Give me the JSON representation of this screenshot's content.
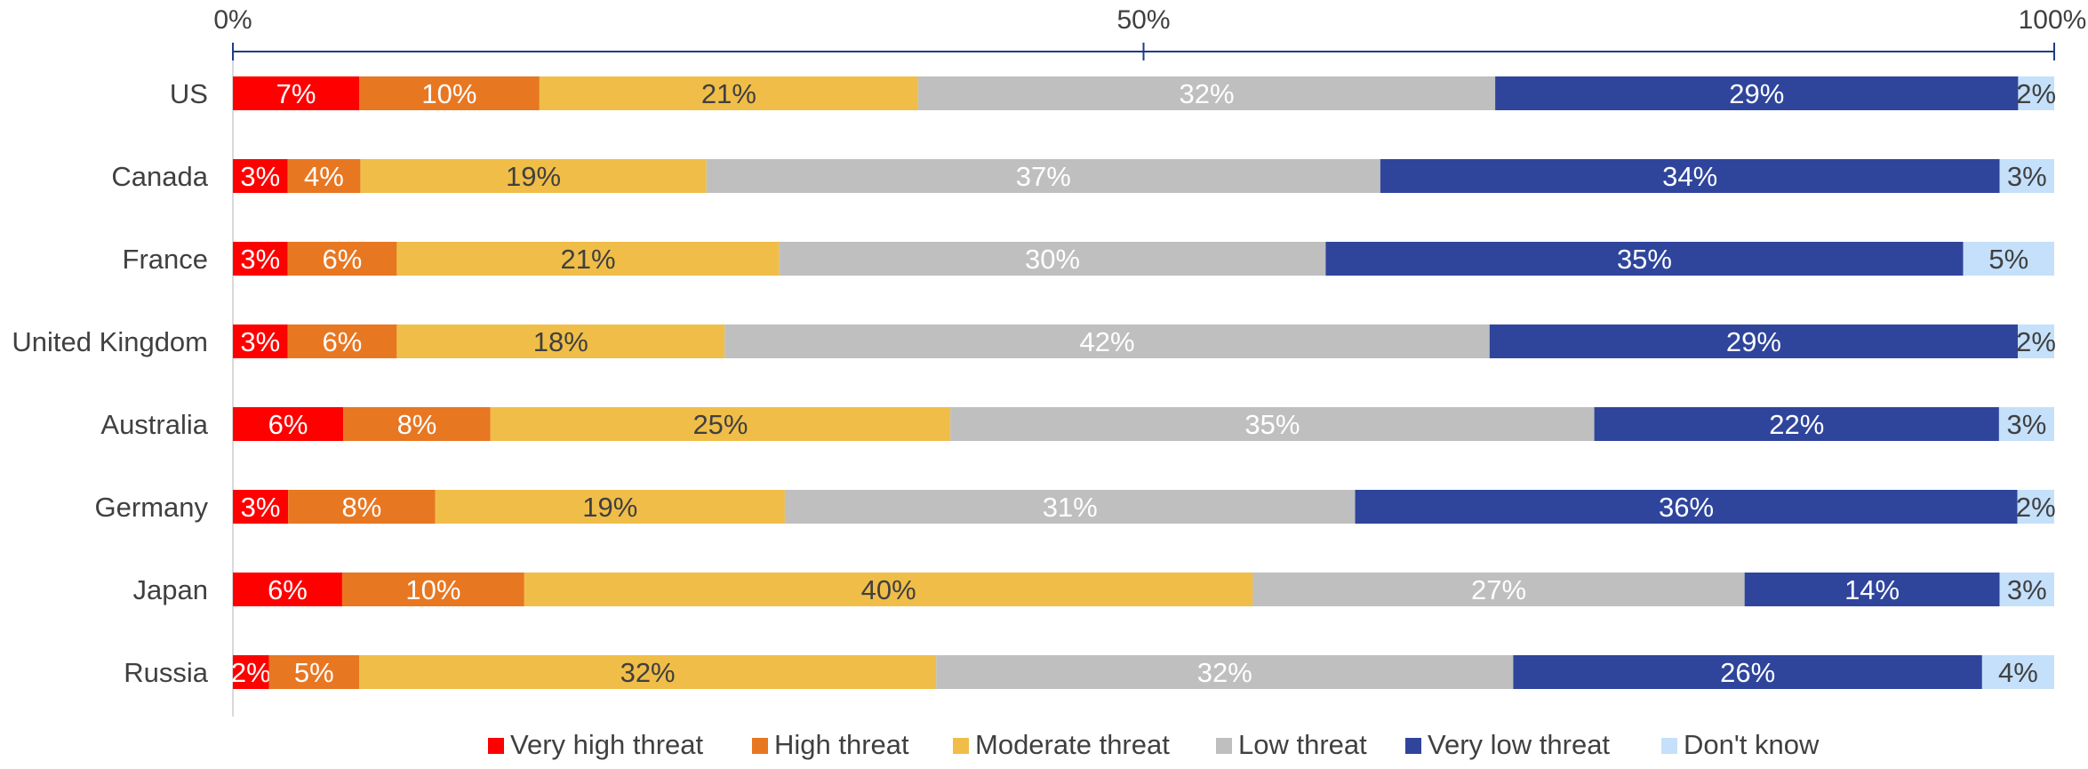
{
  "chart_data": {
    "type": "bar",
    "orientation": "horizontal",
    "stacked": true,
    "categories": [
      "US",
      "Canada",
      "France",
      "United Kingdom",
      "Australia",
      "Germany",
      "Japan",
      "Russia"
    ],
    "series": [
      {
        "name": "Very high threat",
        "color": "#ff0000",
        "label_color": "#ffffff",
        "values": [
          7,
          3,
          3,
          3,
          6,
          3,
          6,
          2
        ]
      },
      {
        "name": "High threat",
        "color": "#e87722",
        "label_color": "#ffffff",
        "values": [
          10,
          4,
          6,
          6,
          8,
          8,
          10,
          5
        ]
      },
      {
        "name": "Moderate threat",
        "color": "#f0be48",
        "label_color": "#404040",
        "values": [
          21,
          19,
          21,
          18,
          25,
          19,
          40,
          32
        ]
      },
      {
        "name": "Low threat",
        "color": "#bfbfbf",
        "label_color": "#ffffff",
        "values": [
          32,
          37,
          30,
          42,
          35,
          31,
          27,
          32
        ]
      },
      {
        "name": "Very low threat",
        "color": "#2f459c",
        "label_color": "#ffffff",
        "values": [
          29,
          34,
          35,
          29,
          22,
          36,
          14,
          26
        ]
      },
      {
        "name": "Don't know",
        "color": "#c5e0fa",
        "label_color": "#404040",
        "values": [
          2,
          3,
          5,
          2,
          3,
          2,
          3,
          4
        ]
      }
    ],
    "data_labels": {
      "US": [
        "7%",
        "10%",
        "21%",
        "32%",
        "29%",
        "2%"
      ],
      "Canada": [
        "3%",
        "4%",
        "19%",
        "37%",
        "34%",
        "3%"
      ],
      "France": [
        "3%",
        "6%",
        "21%",
        "30%",
        "35%",
        "5%"
      ],
      "United Kingdom": [
        "3%",
        "6%",
        "18%",
        "42%",
        "29%",
        "2%"
      ],
      "Australia": [
        "6%",
        "8%",
        "25%",
        "35%",
        "22%",
        "3%"
      ],
      "Germany": [
        "3%",
        "8%",
        "19%",
        "31%",
        "36%",
        "2%"
      ],
      "Japan": [
        "6%",
        "10%",
        "40%",
        "27%",
        "14%",
        "3%"
      ],
      "Russia": [
        "2%",
        "5%",
        "32%",
        "32%",
        "26%",
        "4%"
      ]
    },
    "x_ticks": [
      "0%",
      "50%",
      "100%"
    ],
    "x_tick_values": [
      0,
      50,
      100
    ],
    "xlim": [
      0,
      100
    ],
    "x_axis_position": "top",
    "axis_color": "#1f3c88",
    "grid": false,
    "legend_position": "bottom"
  }
}
